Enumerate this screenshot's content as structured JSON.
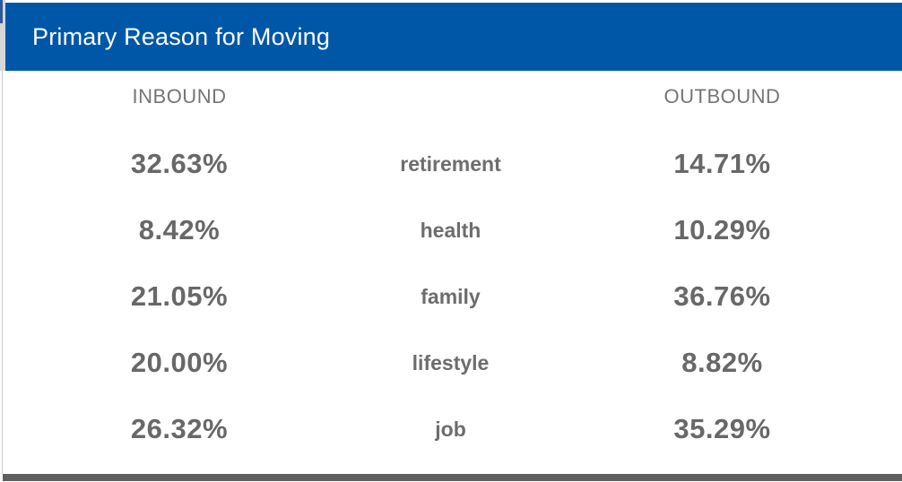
{
  "header": {
    "title": "Primary Reason for Moving"
  },
  "columns": {
    "inbound": "INBOUND",
    "outbound": "OUTBOUND"
  },
  "rows": [
    {
      "reason": "retirement",
      "inbound": "32.63%",
      "outbound": "14.71%"
    },
    {
      "reason": "health",
      "inbound": "8.42%",
      "outbound": "10.29%"
    },
    {
      "reason": "family",
      "inbound": "21.05%",
      "outbound": "36.76%"
    },
    {
      "reason": "lifestyle",
      "inbound": "20.00%",
      "outbound": "8.82%"
    },
    {
      "reason": "job",
      "inbound": "26.32%",
      "outbound": "35.29%"
    }
  ],
  "colors": {
    "header_blue": "#0057a8",
    "header_text": "#ffffff",
    "column_header_gray": "#757575",
    "value_gray": "#686868",
    "reason_gray": "#6d6d6d",
    "bottom_bar_gray": "#5f5f5f",
    "left_border_gray": "#cbcbcb"
  },
  "chart_data": {
    "type": "table",
    "title": "Primary Reason for Moving",
    "categories": [
      "retirement",
      "health",
      "family",
      "lifestyle",
      "job"
    ],
    "series": [
      {
        "name": "INBOUND",
        "values": [
          32.63,
          8.42,
          21.05,
          20.0,
          26.32
        ]
      },
      {
        "name": "OUTBOUND",
        "values": [
          14.71,
          10.29,
          36.76,
          8.82,
          35.29
        ]
      }
    ],
    "value_format": "percent",
    "layout": "values-left | category-center | values-right"
  }
}
